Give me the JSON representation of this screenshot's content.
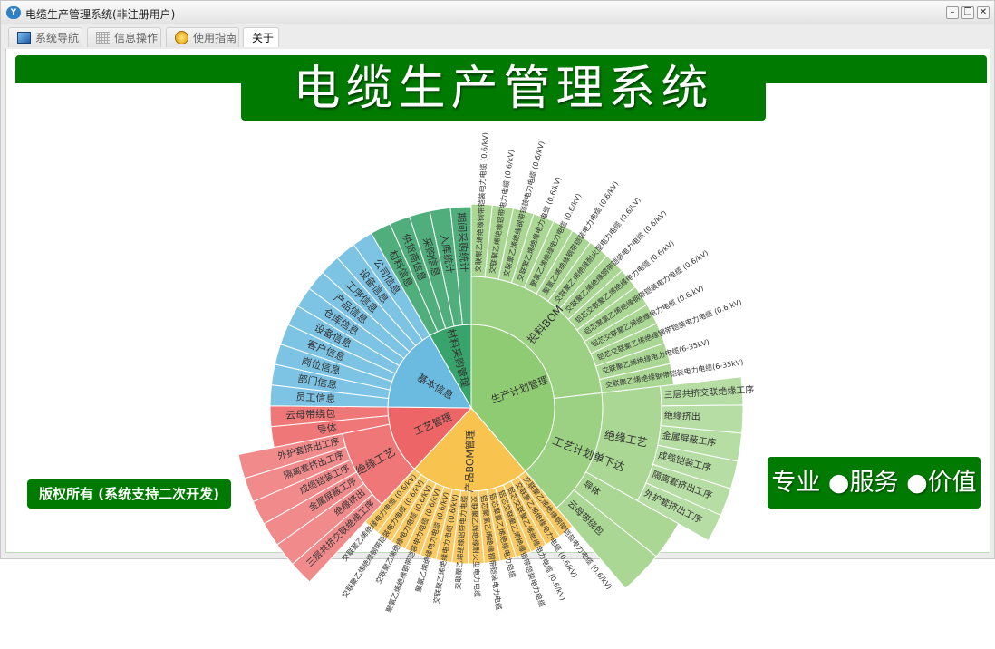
{
  "window": {
    "title": "电缆生产管理系统(非注册用户)",
    "controls": [
      "minimize",
      "restore",
      "close"
    ]
  },
  "tabs": [
    {
      "label": "系统导航",
      "icon": "monitor-icon"
    },
    {
      "label": "信息操作",
      "icon": "grid-icon"
    },
    {
      "label": "使用指南",
      "icon": "help-icon"
    },
    {
      "label": "关于",
      "active": true
    }
  ],
  "header": {
    "title": "电缆生产管理系统"
  },
  "footer": {
    "copyright": "版权所有 (系统支持二次开发)",
    "slogan": "专业 ●服务 ●价值"
  },
  "colors": {
    "brand": "#007a00",
    "green": "#8fcb72",
    "yellow": "#f8c34e",
    "red": "#ed6566",
    "blue": "#6bbbe0",
    "teal": "#38a36a"
  },
  "sunburst": [
    {
      "name": "生产计划管理",
      "color": "#8fcb72",
      "children": [
        {
          "name": "投料BOM",
          "children": [
            {
              "name": "交联聚乙烯绝缘钢带铠装电力电缆 (0.6/kV)"
            },
            {
              "name": "交联聚乙烯绝缘铝带电力电缆 (0.6/kV)"
            },
            {
              "name": "交联聚乙烯绝缘钢带铠装电力电缆 (0.6/kV)"
            },
            {
              "name": "交联聚乙烯绝缘电力电缆 (0.6/kV)"
            },
            {
              "name": "聚氯乙烯绝缘电力电缆 (0.6/kV)"
            },
            {
              "name": "聚氯乙烯绝缘钢带铠装电力电缆 (0.6/kV)"
            },
            {
              "name": "交联聚乙烯绝缘耐火型电力电缆 (0.6/kV)"
            },
            {
              "name": "交联聚乙烯绝缘钢带铠装电力电缆 (0.6/kV)"
            },
            {
              "name": "铝芯交联聚乙烯绝缘电力电缆 (0.6/kV)"
            },
            {
              "name": "铝芯聚氯乙烯绝缘钢带铠装电力电缆 (0.6/kV)"
            },
            {
              "name": "铝芯交联聚乙烯绝缘电力电缆 (0.6/kV)"
            },
            {
              "name": "铝芯交联聚乙烯绝缘钢带铠装电力电缆 (0.6/kV)"
            },
            {
              "name": "交联聚乙烯绝缘电力电缆(6-35kV)"
            },
            {
              "name": "交联聚乙烯绝缘钢带铠装电力电缆(6-35kV)"
            }
          ]
        },
        {
          "name": "工艺计划单下达",
          "children": [
            {
              "name": "绝缘工艺",
              "children": [
                {
                  "name": "三层共挤交联绝缘工序"
                },
                {
                  "name": "绝缘挤出"
                },
                {
                  "name": "金属屏蔽工序"
                },
                {
                  "name": "成缆铠装工序"
                },
                {
                  "name": "隔离套挤出工序"
                },
                {
                  "name": "外护套挤出工序"
                }
              ]
            },
            {
              "name": "导体",
              "value": 8
            },
            {
              "name": "云母带绕包",
              "value": 9
            }
          ]
        }
      ]
    },
    {
      "name": "产品BOM管理",
      "color": "#f8c34e",
      "children": [
        {
          "name": "交联聚乙烯绝缘钢带铠装电力电缆 (0.6/kV)"
        },
        {
          "name": "交联聚乙烯绝缘电力电缆 (0.6/kV)"
        },
        {
          "name": "铝芯交联聚乙烯绝缘电力电缆 (0.6/kV)"
        },
        {
          "name": "铝芯交联聚乙烯绝缘钢带铠装电力电缆"
        },
        {
          "name": "铝芯聚氯乙烯绝缘电力电缆"
        },
        {
          "name": "铝芯聚氯乙烯绝缘钢带铠装电力电缆"
        },
        {
          "name": "交联聚乙烯绝缘耐火型电力电缆"
        },
        {
          "name": "交联聚乙烯绝缘铝带电力电缆"
        },
        {
          "name": "交联聚乙烯绝缘电力电缆 (0.6/kV)"
        },
        {
          "name": "聚氯乙烯绝缘电力电缆 (0.6/kV)"
        },
        {
          "name": "聚氯乙烯绝缘钢带铠装电力电缆 (0.6/kV)"
        },
        {
          "name": "交联聚乙烯绝缘电力电缆 (0.6/kV)"
        },
        {
          "name": "交联聚乙烯绝缘钢带铠装电力电缆 (0.6/kV)"
        },
        {
          "name": "交联聚乙烯绝缘电力电缆 (0.6/kV)"
        }
      ]
    },
    {
      "name": "工艺管理",
      "color": "#ed6566",
      "children": [
        {
          "name": "绝缘工艺",
          "children": [
            {
              "name": "三层共挤交联绝缘工序"
            },
            {
              "name": "绝缘挤出"
            },
            {
              "name": "金属屏蔽工序"
            },
            {
              "name": "成缆铠装工序"
            },
            {
              "name": "隔离套挤出工序"
            },
            {
              "name": "外护套挤出工序"
            }
          ]
        },
        {
          "name": "导体",
          "value": 5
        },
        {
          "name": "云母带绕包",
          "value": 5
        }
      ]
    },
    {
      "name": "基本信息",
      "color": "#6bbbe0",
      "children": [
        {
          "name": "员工信息"
        },
        {
          "name": "部门信息"
        },
        {
          "name": "岗位信息"
        },
        {
          "name": "客户信息"
        },
        {
          "name": "设备信息"
        },
        {
          "name": "仓库信息"
        },
        {
          "name": "产品信息"
        },
        {
          "name": "工序信息"
        },
        {
          "name": "设备信息"
        },
        {
          "name": "公司信息"
        }
      ]
    },
    {
      "name": "材料采购管理",
      "color": "#38a36a",
      "children": [
        {
          "name": "材料信息"
        },
        {
          "name": "供货商信息"
        },
        {
          "name": "采购信息"
        },
        {
          "name": "入库统计"
        },
        {
          "name": "期间采购统计"
        }
      ]
    }
  ]
}
